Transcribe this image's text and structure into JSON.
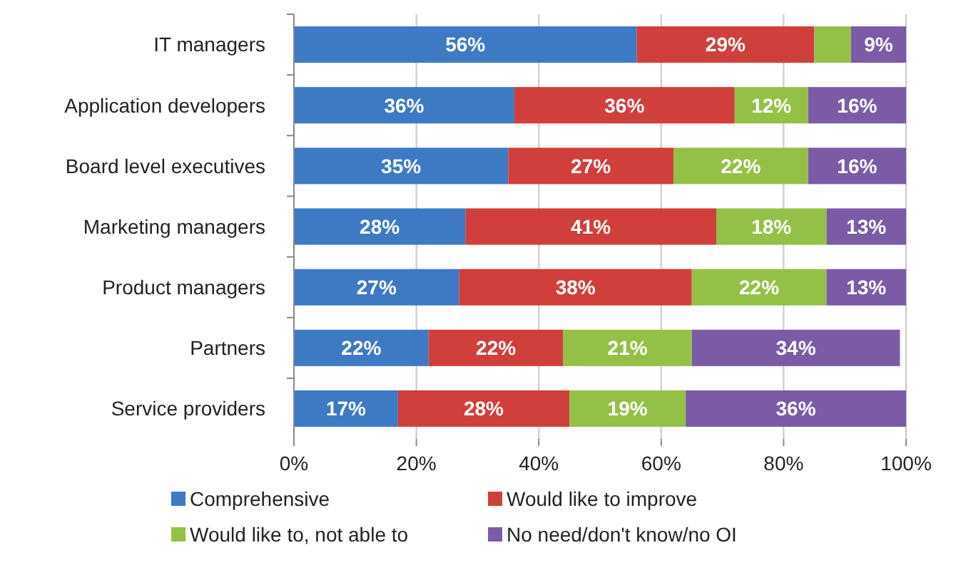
{
  "chart_data": {
    "type": "bar",
    "orientation": "horizontal",
    "stacked": true,
    "categories": [
      "IT managers",
      "Application developers",
      "Board level executives",
      "Marketing managers",
      "Product managers",
      "Partners",
      "Service providers"
    ],
    "series": [
      {
        "name": "Comprehensive",
        "color": "#3e7ac4",
        "values": [
          56,
          36,
          35,
          28,
          27,
          22,
          17
        ],
        "value_labels": [
          "56%",
          "36%",
          "35%",
          "28%",
          "27%",
          "22%",
          "17%"
        ]
      },
      {
        "name": "Would like to improve",
        "color": "#d03f3b",
        "values": [
          29,
          36,
          27,
          41,
          38,
          22,
          28
        ],
        "value_labels": [
          "29%",
          "36%",
          "27%",
          "41%",
          "38%",
          "22%",
          "28%"
        ]
      },
      {
        "name": "Would like to, not able to",
        "color": "#94c048",
        "values": [
          6,
          12,
          22,
          18,
          22,
          21,
          19
        ],
        "value_labels": [
          null,
          "12%",
          "22%",
          "18%",
          "22%",
          "21%",
          "19%"
        ]
      },
      {
        "name": "No need/don't know/no OI",
        "color": "#7c5ba6",
        "values": [
          9,
          16,
          16,
          13,
          13,
          34,
          36
        ],
        "value_labels": [
          "9%",
          "16%",
          "16%",
          "13%",
          "13%",
          "34%",
          "36%"
        ]
      }
    ],
    "xlim": [
      0,
      100
    ],
    "xticks": [
      {
        "value": 0,
        "label": "0%"
      },
      {
        "value": 20,
        "label": "20%"
      },
      {
        "value": 40,
        "label": "40%"
      },
      {
        "value": 60,
        "label": "60%"
      },
      {
        "value": 80,
        "label": "80%"
      },
      {
        "value": 100,
        "label": "100%"
      }
    ],
    "grid": "x",
    "legend": "bottom"
  }
}
